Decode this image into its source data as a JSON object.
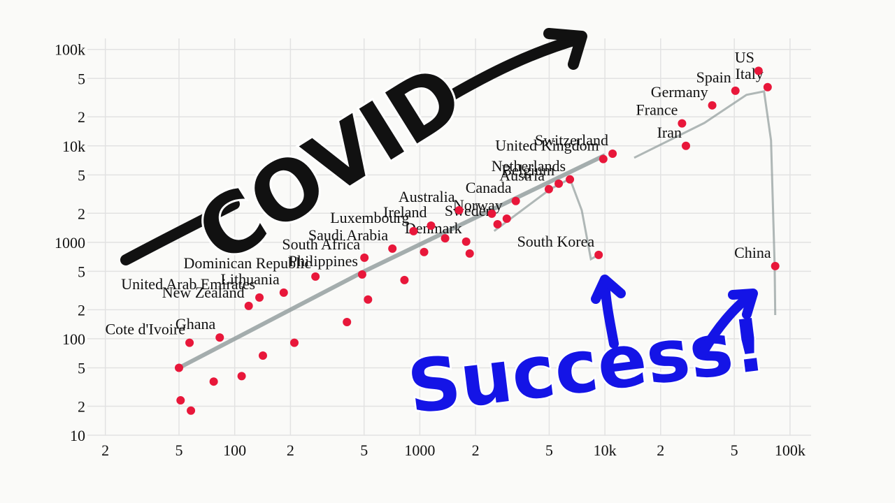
{
  "chart_data": {
    "type": "scatter",
    "xscale": "log",
    "yscale": "log",
    "grid": true,
    "xlim": [
      16,
      130000
    ],
    "ylim": [
      10,
      130000
    ],
    "xticks": [
      {
        "value": 20,
        "label": "2"
      },
      {
        "value": 50,
        "label": "5"
      },
      100,
      {
        "value": 200,
        "label": "2"
      },
      {
        "value": 500,
        "label": "5"
      },
      1000,
      {
        "value": 2000,
        "label": "2"
      },
      {
        "value": 5000,
        "label": "5"
      },
      {
        "value": 10000,
        "label": "10k"
      },
      {
        "value": 20000,
        "label": "2"
      },
      {
        "value": 50000,
        "label": "5"
      },
      {
        "value": 100000,
        "label": "100k"
      }
    ],
    "yticks": [
      10,
      {
        "value": 20,
        "label": "2"
      },
      {
        "value": 50,
        "label": "5"
      },
      100,
      {
        "value": 200,
        "label": "2"
      },
      {
        "value": 500,
        "label": "5"
      },
      1000,
      {
        "value": 2000,
        "label": "2"
      },
      {
        "value": 5000,
        "label": "5"
      },
      {
        "value": 10000,
        "label": "10k"
      },
      {
        "value": 20000,
        "label": "2"
      },
      {
        "value": 50000,
        "label": "5"
      },
      {
        "value": 100000,
        "label": "100k"
      }
    ],
    "color": "#e8173a",
    "line_color": "#8f9a9a",
    "labels": [
      "US",
      "Italy",
      "Spain",
      "Germany",
      "France",
      "Iran",
      "Switzerland",
      "United Kingdom",
      "Netherlands",
      "Belgium",
      "Austria",
      "Canada",
      "South Korea",
      "China",
      "Dominican Republic",
      "Saudi Arabia",
      "Luxembourg",
      "South Africa",
      "United Arab Emirates",
      "Philippines",
      "Lithuania",
      "New Zealand",
      "Cote d'Ivoire",
      "Ghana",
      "Australia",
      "Norway",
      "Sweden",
      "Ireland",
      "Denmark",
      null,
      null,
      null,
      null,
      null,
      null,
      null,
      null,
      null,
      null,
      null,
      null,
      null,
      null
    ],
    "x": [
      67600,
      75700,
      50700,
      38000,
      26100,
      27400,
      11000,
      9800,
      6470,
      5630,
      4980,
      3300,
      9250,
      83200,
      273,
      711,
      925,
      502,
      136,
      488,
      184,
      119,
      57,
      83,
      1630,
      2950,
      2630,
      1150,
      1780,
      50,
      58,
      51,
      77,
      109,
      142,
      210,
      404,
      525,
      826,
      1055,
      1860,
      2450,
      1370
    ],
    "y": [
      60000,
      40600,
      37300,
      26300,
      17100,
      10000,
      8300,
      7300,
      4490,
      4060,
      3560,
      2680,
      741,
      567,
      442,
      861,
      1306,
      693,
      268,
      464,
      301,
      219,
      91,
      103,
      2150,
      1760,
      1540,
      1490,
      1016,
      50,
      18,
      23,
      36,
      41,
      67,
      91,
      149,
      255,
      406,
      793,
      766,
      1980,
      1100
    ],
    "lines": [
      {
        "x": [
          14400,
          34500,
          58200,
          72400,
          79000,
          82600,
          83200
        ],
        "y": [
          7530,
          17300,
          33800,
          36700,
          11400,
          567,
          176
        ]
      },
      {
        "x": [
          2520,
          5070,
          6470,
          7500,
          8400,
          9250
        ],
        "y": [
          1310,
          3560,
          4560,
          2150,
          670,
          741
        ]
      },
      {
        "x": [
          50,
          500,
          10000
        ],
        "y": [
          50,
          500,
          8000
        ]
      }
    ],
    "annotations": [
      "COVID",
      "Success!"
    ]
  }
}
